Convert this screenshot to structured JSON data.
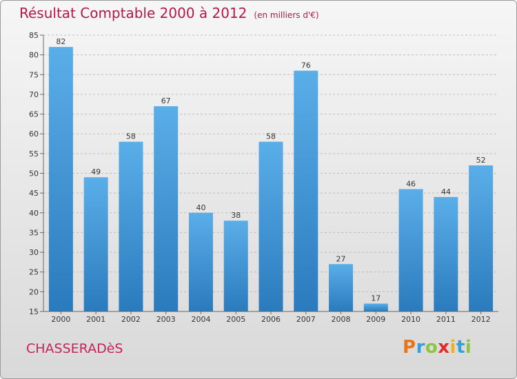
{
  "header": {
    "title": "Résultat Comptable 2000 à 2012",
    "subtitle": "(en milliers d'€)"
  },
  "footer": {
    "commune": "CHASSERADèS",
    "logo": "Proxiti",
    "logo_colors": [
      "#e8751a",
      "#35a0d8",
      "#8cc63f",
      "#e22a2a",
      "#f2b01e",
      "#35a0d8",
      "#8cc63f"
    ]
  },
  "colors": {
    "bar_top": "#5aaee8",
    "bar_bottom": "#2a7bbd",
    "grid": "#bcbcbc",
    "axis": "#666666"
  },
  "chart_data": {
    "type": "bar",
    "title": "Résultat Comptable 2000 à 2012",
    "subtitle": "(en milliers d'€)",
    "categories": [
      "2000",
      "2001",
      "2002",
      "2003",
      "2004",
      "2005",
      "2006",
      "2007",
      "2008",
      "2009",
      "2010",
      "2011",
      "2012"
    ],
    "values": [
      82,
      49,
      58,
      67,
      40,
      38,
      58,
      76,
      27,
      17,
      46,
      44,
      52
    ],
    "ylim": [
      15,
      85
    ],
    "yticks": [
      15,
      20,
      25,
      30,
      35,
      40,
      45,
      50,
      55,
      60,
      65,
      70,
      75,
      80,
      85
    ],
    "grid": true,
    "data_labels": true
  }
}
